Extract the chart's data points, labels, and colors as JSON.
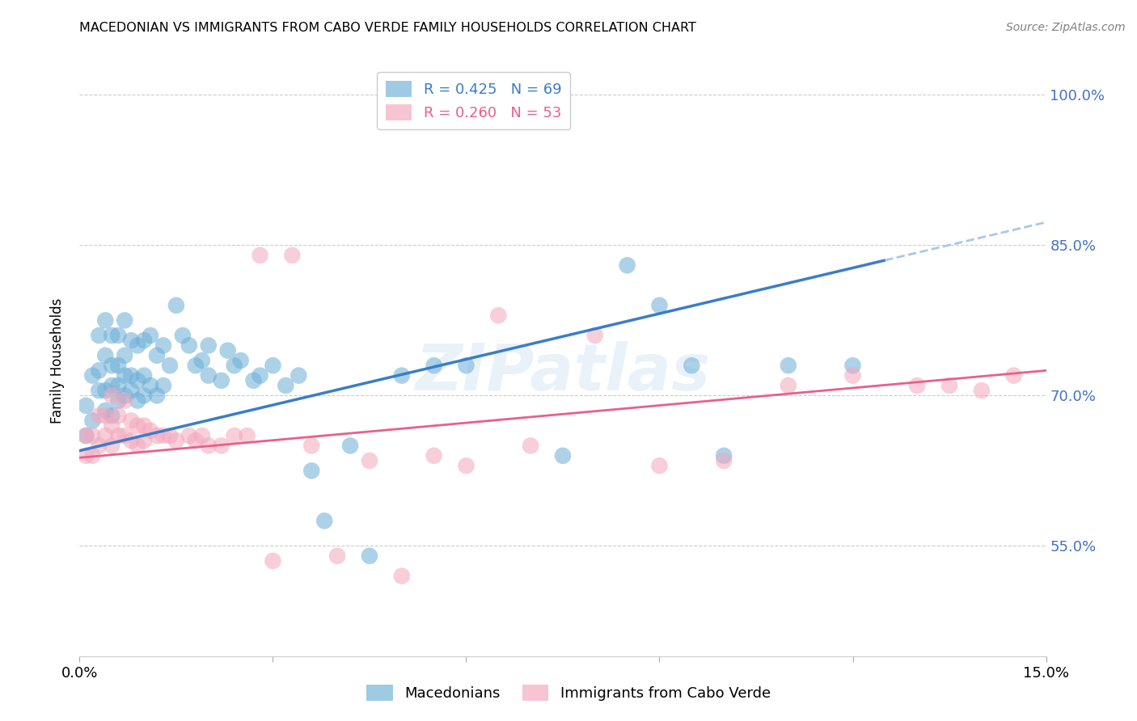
{
  "title": "MACEDONIAN VS IMMIGRANTS FROM CABO VERDE FAMILY HOUSEHOLDS CORRELATION CHART",
  "source": "Source: ZipAtlas.com",
  "ylabel": "Family Households",
  "xmin": 0.0,
  "xmax": 0.15,
  "ymin": 0.44,
  "ymax": 1.03,
  "yticks": [
    0.55,
    0.7,
    0.85,
    1.0
  ],
  "ytick_labels": [
    "55.0%",
    "70.0%",
    "85.0%",
    "100.0%"
  ],
  "xticks": [
    0.0,
    0.03,
    0.06,
    0.09,
    0.12,
    0.15
  ],
  "xtick_labels": [
    "0.0%",
    "",
    "",
    "",
    "",
    "15.0%"
  ],
  "blue_R": 0.425,
  "blue_N": 69,
  "pink_R": 0.26,
  "pink_N": 53,
  "blue_color": "#6baed6",
  "pink_color": "#f4a6bb",
  "blue_line_color": "#3a7dc9",
  "pink_line_color": "#e8608a",
  "dashed_line_color": "#a8c8e8",
  "watermark": "ZIPatlas",
  "legend_label_blue": "Macedonians",
  "legend_label_pink": "Immigrants from Cabo Verde",
  "blue_line_x0": 0.0,
  "blue_line_y0": 0.645,
  "blue_line_x1": 0.125,
  "blue_line_y1": 0.835,
  "pink_line_x0": 0.0,
  "pink_line_y0": 0.638,
  "pink_line_x1": 0.15,
  "pink_line_y1": 0.725,
  "blue_x": [
    0.001,
    0.001,
    0.002,
    0.002,
    0.003,
    0.003,
    0.003,
    0.004,
    0.004,
    0.004,
    0.004,
    0.005,
    0.005,
    0.005,
    0.005,
    0.006,
    0.006,
    0.006,
    0.006,
    0.007,
    0.007,
    0.007,
    0.007,
    0.008,
    0.008,
    0.008,
    0.009,
    0.009,
    0.009,
    0.01,
    0.01,
    0.01,
    0.011,
    0.011,
    0.012,
    0.012,
    0.013,
    0.013,
    0.014,
    0.015,
    0.016,
    0.017,
    0.018,
    0.019,
    0.02,
    0.02,
    0.022,
    0.023,
    0.024,
    0.025,
    0.027,
    0.028,
    0.03,
    0.032,
    0.034,
    0.036,
    0.038,
    0.042,
    0.045,
    0.05,
    0.055,
    0.06,
    0.075,
    0.085,
    0.09,
    0.095,
    0.1,
    0.11,
    0.12
  ],
  "blue_y": [
    0.66,
    0.69,
    0.675,
    0.72,
    0.705,
    0.725,
    0.76,
    0.685,
    0.705,
    0.74,
    0.775,
    0.68,
    0.71,
    0.73,
    0.76,
    0.695,
    0.71,
    0.73,
    0.76,
    0.7,
    0.72,
    0.74,
    0.775,
    0.705,
    0.72,
    0.755,
    0.695,
    0.715,
    0.75,
    0.7,
    0.72,
    0.755,
    0.71,
    0.76,
    0.7,
    0.74,
    0.71,
    0.75,
    0.73,
    0.79,
    0.76,
    0.75,
    0.73,
    0.735,
    0.72,
    0.75,
    0.715,
    0.745,
    0.73,
    0.735,
    0.715,
    0.72,
    0.73,
    0.71,
    0.72,
    0.625,
    0.575,
    0.65,
    0.54,
    0.72,
    0.73,
    0.73,
    0.64,
    0.83,
    0.79,
    0.73,
    0.64,
    0.73,
    0.73
  ],
  "pink_x": [
    0.001,
    0.001,
    0.002,
    0.002,
    0.003,
    0.003,
    0.004,
    0.004,
    0.005,
    0.005,
    0.005,
    0.006,
    0.006,
    0.007,
    0.007,
    0.008,
    0.008,
    0.009,
    0.009,
    0.01,
    0.01,
    0.011,
    0.012,
    0.013,
    0.014,
    0.015,
    0.017,
    0.018,
    0.019,
    0.02,
    0.022,
    0.024,
    0.026,
    0.028,
    0.03,
    0.033,
    0.036,
    0.04,
    0.045,
    0.05,
    0.055,
    0.06,
    0.065,
    0.07,
    0.08,
    0.09,
    0.1,
    0.11,
    0.12,
    0.13,
    0.135,
    0.14,
    0.145
  ],
  "pink_y": [
    0.64,
    0.66,
    0.64,
    0.66,
    0.65,
    0.68,
    0.66,
    0.68,
    0.65,
    0.67,
    0.7,
    0.66,
    0.68,
    0.66,
    0.695,
    0.655,
    0.675,
    0.65,
    0.67,
    0.655,
    0.67,
    0.665,
    0.66,
    0.66,
    0.66,
    0.655,
    0.66,
    0.655,
    0.66,
    0.65,
    0.65,
    0.66,
    0.66,
    0.84,
    0.535,
    0.84,
    0.65,
    0.54,
    0.635,
    0.52,
    0.64,
    0.63,
    0.78,
    0.65,
    0.76,
    0.63,
    0.635,
    0.71,
    0.72,
    0.71,
    0.71,
    0.705,
    0.72
  ]
}
